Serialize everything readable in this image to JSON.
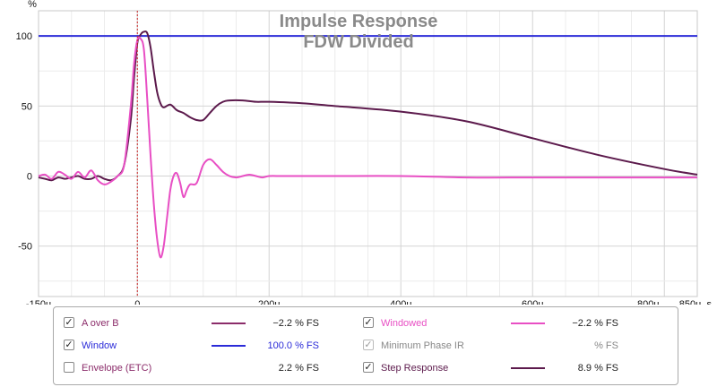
{
  "chart_data": {
    "type": "line",
    "title": "Impulse Response",
    "subtitle": "FDW Divided",
    "ylabel": "%",
    "xunit": "s",
    "xlim": [
      -150,
      850
    ],
    "ylim": [
      -86,
      118
    ],
    "xticks": [
      {
        "value": -150,
        "label": "-150u"
      },
      {
        "value": 0,
        "label": "0"
      },
      {
        "value": 200,
        "label": "200u"
      },
      {
        "value": 400,
        "label": "400u"
      },
      {
        "value": 600,
        "label": "600u"
      },
      {
        "value": 800,
        "label": "800u"
      },
      {
        "value": 850,
        "label": "850u"
      }
    ],
    "yticks": [
      {
        "value": 100,
        "label": "100"
      },
      {
        "value": 50,
        "label": "50"
      },
      {
        "value": 0,
        "label": "0"
      },
      {
        "value": -50,
        "label": "-50"
      }
    ],
    "marker_x": 0,
    "grid": true,
    "series": [
      {
        "name": "Window",
        "color": "#2b2bd8",
        "x": [
          -150,
          850
        ],
        "y": [
          100,
          100
        ]
      },
      {
        "name": "Step Response",
        "color": "#5c1a4c",
        "x": [
          -150,
          -140,
          -130,
          -120,
          -110,
          -100,
          -90,
          -80,
          -70,
          -60,
          -50,
          -40,
          -30,
          -20,
          -10,
          -5,
          0,
          5,
          10,
          15,
          20,
          25,
          30,
          35,
          40,
          50,
          60,
          70,
          80,
          90,
          100,
          110,
          120,
          130,
          140,
          160,
          180,
          200,
          250,
          300,
          400,
          500,
          600,
          700,
          800,
          850
        ],
        "y": [
          -1,
          -2,
          -3,
          -1,
          -2,
          -1,
          0,
          -2,
          -2,
          0,
          -2,
          -3,
          0,
          8,
          40,
          70,
          95,
          101,
          103,
          102,
          92,
          75,
          60,
          52,
          49,
          51,
          47,
          45,
          42,
          40,
          40,
          45,
          50,
          53,
          54,
          54,
          53,
          53,
          52,
          50,
          46,
          39,
          27,
          15,
          5,
          1
        ]
      },
      {
        "name": "Windowed",
        "color": "#e84fc4",
        "x": [
          -150,
          -140,
          -130,
          -120,
          -110,
          -100,
          -90,
          -80,
          -70,
          -60,
          -50,
          -40,
          -30,
          -20,
          -10,
          -5,
          0,
          5,
          10,
          15,
          20,
          25,
          30,
          35,
          40,
          45,
          50,
          55,
          60,
          65,
          70,
          75,
          80,
          90,
          100,
          110,
          120,
          130,
          140,
          150,
          160,
          170,
          180,
          190,
          200,
          220,
          250,
          300,
          400,
          500,
          600,
          700,
          800,
          850
        ],
        "y": [
          0,
          1,
          -2,
          3,
          1,
          -2,
          3,
          -1,
          4,
          -3,
          -6,
          -4,
          0,
          8,
          50,
          80,
          97,
          98,
          90,
          55,
          15,
          -20,
          -45,
          -58,
          -50,
          -30,
          -10,
          0,
          2,
          -5,
          -15,
          -10,
          -6,
          -5,
          8,
          12,
          8,
          3,
          0,
          -1,
          0,
          1,
          0,
          -1,
          0,
          0,
          0,
          0,
          0,
          -1,
          -1,
          -1,
          -1,
          -1
        ]
      }
    ]
  },
  "legend": {
    "items": [
      {
        "name": "A over B",
        "checked": true,
        "label_color": "#8b2c6a",
        "line_color": "#8b2c6a",
        "value": "−2.2 % FS"
      },
      {
        "name": "Window",
        "checked": true,
        "label_color": "#2b2bd8",
        "line_color": "#2b2bd8",
        "value": "100.0 % FS",
        "value_color": "#2b2bd8"
      },
      {
        "name": "Envelope (ETC)",
        "checked": false,
        "label_color": "#8b2c6a",
        "line_color": "",
        "value": "2.2 % FS"
      },
      {
        "name": "Windowed",
        "checked": true,
        "label_color": "#e84fc4",
        "line_color": "#e84fc4",
        "value": "−2.2 % FS"
      },
      {
        "name": "Minimum Phase IR",
        "checked": true,
        "dim": true,
        "label_color": "#888888",
        "line_color": "",
        "value": "% FS",
        "value_color": "#888888"
      },
      {
        "name": "Step Response",
        "checked": true,
        "label_color": "#5c1a4c",
        "line_color": "#5c1a4c",
        "value": "8.9 % FS"
      }
    ]
  }
}
